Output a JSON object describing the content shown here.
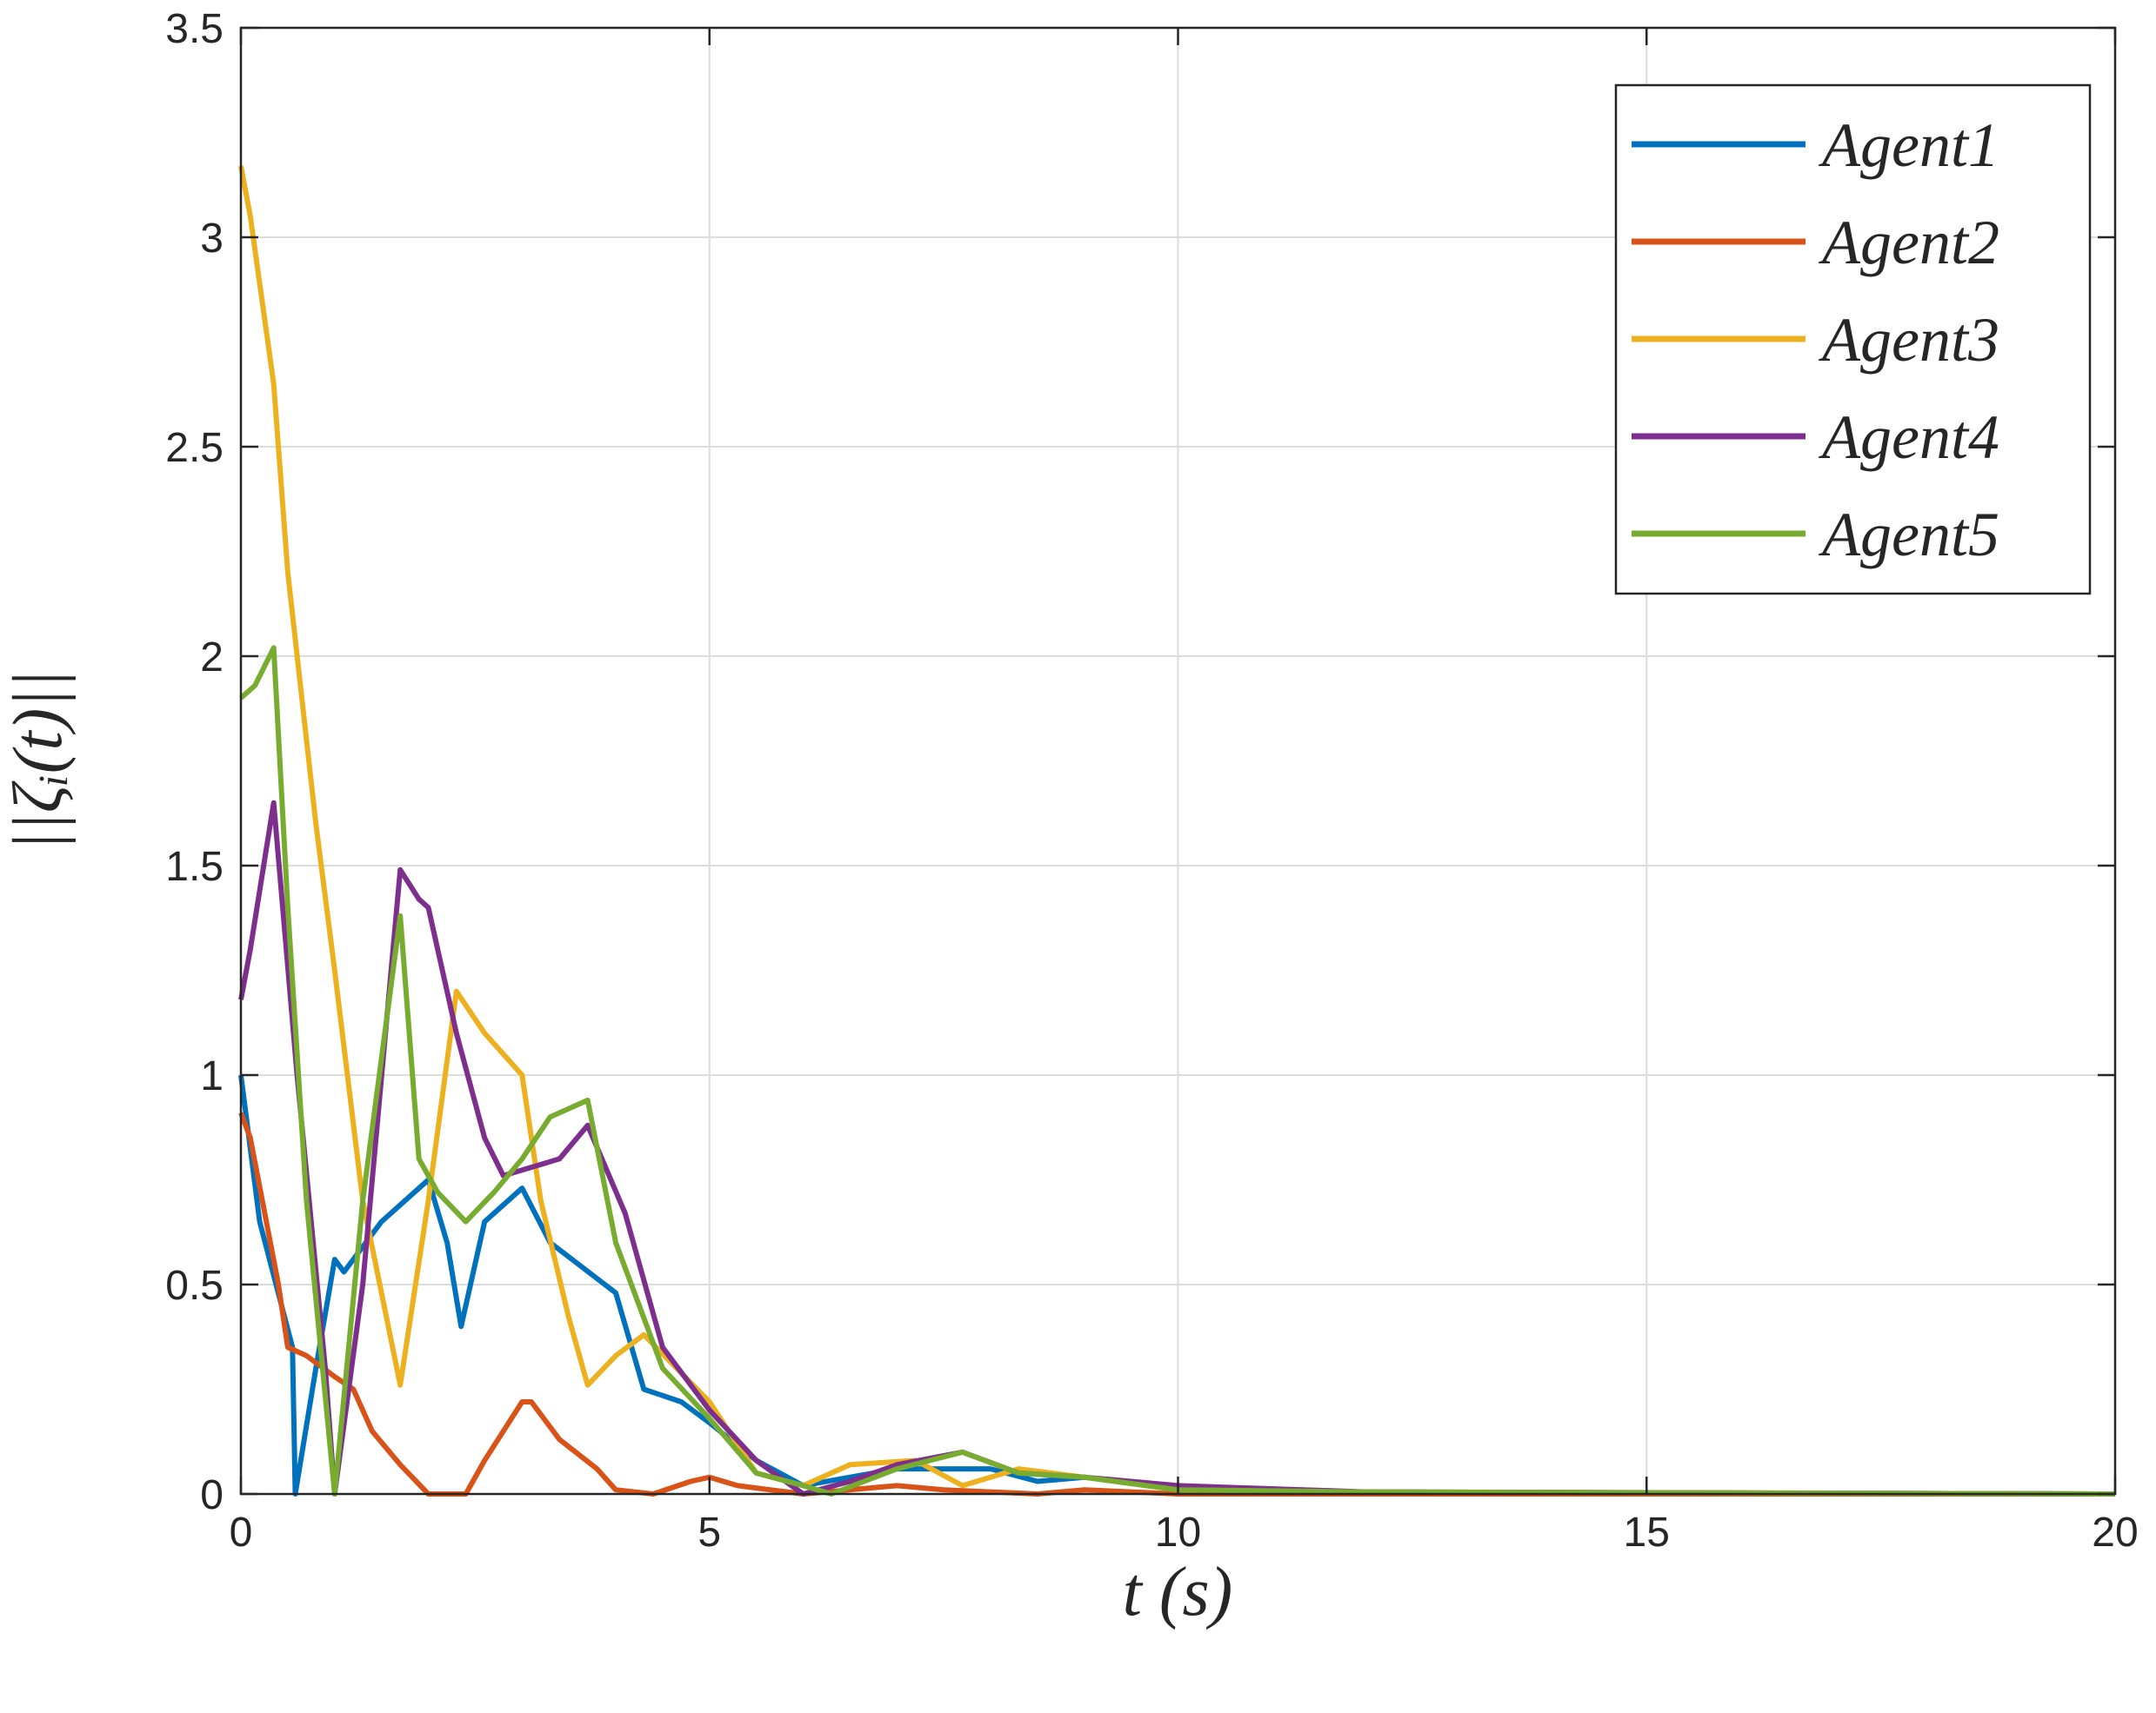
{
  "chart_data": {
    "type": "line",
    "xlabel": "t (s)",
    "ylabel": "||ζᵢ(t)||",
    "xlim": [
      0,
      20
    ],
    "xticks": [
      0,
      5,
      10,
      15,
      20
    ],
    "ylim": [
      0,
      3.5
    ],
    "yticks": [
      0,
      0.5,
      1,
      1.5,
      2,
      2.5,
      3,
      3.5
    ],
    "grid": true,
    "legend": "upper right",
    "series": [
      {
        "name": "Agent1",
        "color": "#0072bd",
        "x": [
          0,
          0.2,
          0.55,
          0.58,
          0.8,
          1,
          1.1,
          1.5,
          2,
          2.2,
          2.35,
          2.6,
          3,
          3.3,
          4,
          4.3,
          4.7,
          5,
          5.5,
          6,
          6.5,
          7,
          8,
          8.5,
          9,
          10,
          12,
          15,
          20
        ],
        "values": [
          1,
          0.65,
          0.35,
          0,
          0.3,
          0.56,
          0.53,
          0.65,
          0.75,
          0.6,
          0.4,
          0.65,
          0.73,
          0.6,
          0.48,
          0.25,
          0.22,
          0.17,
          0.08,
          0.02,
          0.04,
          0.06,
          0.06,
          0.03,
          0.04,
          0.01,
          0.005,
          0.003,
          0
        ]
      },
      {
        "name": "Agent2",
        "color": "#d95319",
        "x": [
          0,
          0.1,
          0.4,
          0.5,
          0.7,
          1,
          1.2,
          1.4,
          1.7,
          2,
          2.4,
          2.6,
          3,
          3.1,
          3.4,
          3.8,
          4,
          4.4,
          4.8,
          5,
          5.3,
          6,
          7,
          7.5,
          8.5,
          9,
          10,
          20
        ],
        "values": [
          0.91,
          0.85,
          0.5,
          0.35,
          0.33,
          0.28,
          0.25,
          0.15,
          0.07,
          0,
          0,
          0.08,
          0.22,
          0.22,
          0.13,
          0.06,
          0.01,
          0,
          0.03,
          0.04,
          0.02,
          0,
          0.02,
          0.01,
          0,
          0.01,
          0,
          0
        ]
      },
      {
        "name": "Agent3",
        "color": "#edb120",
        "x": [
          0,
          0.1,
          0.35,
          0.5,
          0.8,
          1,
          1.3,
          1.7,
          2,
          2.3,
          2.6,
          3,
          3.2,
          3.5,
          3.7,
          4,
          4.3,
          5,
          5.5,
          6,
          6.5,
          7.2,
          7.7,
          8.3,
          9,
          10,
          12,
          20
        ],
        "values": [
          3.17,
          3.05,
          2.65,
          2.2,
          1.6,
          1.25,
          0.7,
          0.26,
          0.7,
          1.2,
          1.1,
          1.0,
          0.7,
          0.42,
          0.26,
          0.33,
          0.38,
          0.22,
          0.05,
          0.02,
          0.07,
          0.08,
          0.02,
          0.06,
          0.04,
          0.01,
          0.005,
          0
        ]
      },
      {
        "name": "Agent4",
        "color": "#7e2f8e",
        "x": [
          0,
          0.1,
          0.35,
          0.6,
          0.9,
          1,
          1.3,
          1.7,
          1.9,
          2,
          2.3,
          2.6,
          2.8,
          3.4,
          3.7,
          4.1,
          4.5,
          5,
          5.5,
          6,
          6.5,
          7,
          7.7,
          8.3,
          9,
          10,
          12,
          20
        ],
        "values": [
          1.18,
          1.3,
          1.65,
          1,
          0.3,
          0,
          0.5,
          1.49,
          1.42,
          1.4,
          1.1,
          0.85,
          0.76,
          0.8,
          0.88,
          0.67,
          0.35,
          0.2,
          0.08,
          0,
          0.03,
          0.07,
          0.1,
          0.05,
          0.04,
          0.02,
          0.005,
          0
        ]
      },
      {
        "name": "Agent5",
        "color": "#77ac30",
        "x": [
          0,
          0.15,
          0.35,
          0.5,
          0.7,
          1,
          1.3,
          1.7,
          1.9,
          2.1,
          2.4,
          2.7,
          3,
          3.3,
          3.7,
          4,
          4.5,
          5,
          5.5,
          6,
          6.3,
          7,
          7.7,
          8.3,
          9,
          10,
          12,
          15,
          20
        ],
        "values": [
          1.9,
          1.93,
          2.02,
          1.4,
          0.7,
          0,
          0.7,
          1.38,
          0.8,
          0.72,
          0.65,
          0.72,
          0.8,
          0.9,
          0.94,
          0.6,
          0.3,
          0.18,
          0.05,
          0.02,
          0,
          0.06,
          0.1,
          0.05,
          0.04,
          0.01,
          0.005,
          0.003,
          0
        ]
      }
    ]
  }
}
